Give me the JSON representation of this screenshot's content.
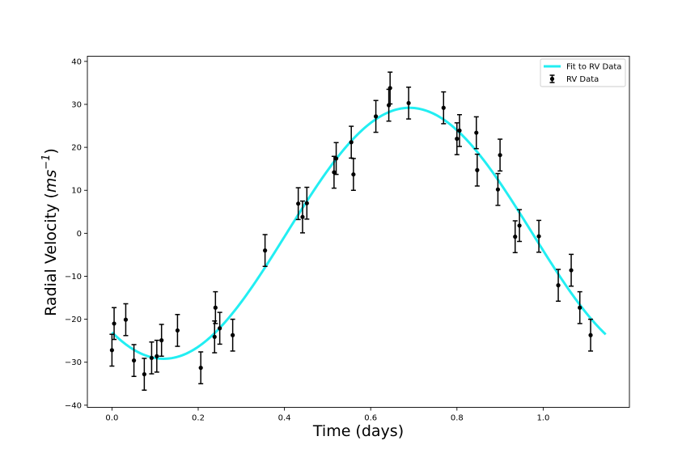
{
  "chart_data": {
    "type": "scatter",
    "xlabel": "Time (days)",
    "ylabel": {
      "prefix": "Radial Velocity (",
      "unit": "ms",
      "exponent": "−1",
      "suffix": ")"
    },
    "xlim": [
      -0.057,
      1.2
    ],
    "ylim": [
      -40.5,
      41.2
    ],
    "xticks": [
      0.0,
      0.2,
      0.4,
      0.6,
      0.8,
      1.0
    ],
    "xtick_labels": [
      "0.0",
      "0.2",
      "0.4",
      "0.6",
      "0.8",
      "1.0"
    ],
    "yticks": [
      -40,
      -30,
      -20,
      -10,
      0,
      10,
      20,
      30,
      40
    ],
    "ytick_labels": [
      "−40",
      "−30",
      "−20",
      "−10",
      "0",
      "10",
      "20",
      "30",
      "40"
    ],
    "grid": false,
    "legend_position": "top-right",
    "colors": {
      "fit": "#22eef2",
      "data": "#000000"
    },
    "legend": [
      {
        "label": "Fit to RV Data",
        "marker": "line"
      },
      {
        "label": "RV Data",
        "marker": "errorbar"
      }
    ],
    "fit": {
      "label": "Fit to RV Data",
      "model": "sinusoid",
      "offset": 0.0,
      "amplitude": 29.2,
      "period_days": 1.14,
      "peak_time_days": 0.69,
      "x_range": [
        0.0,
        1.145
      ]
    },
    "series": [
      {
        "name": "RV Data",
        "x": [
          0.0,
          0.005,
          0.032,
          0.051,
          0.075,
          0.092,
          0.104,
          0.115,
          0.152,
          0.206,
          0.238,
          0.24,
          0.25,
          0.28,
          0.355,
          0.432,
          0.442,
          0.452,
          0.515,
          0.52,
          0.555,
          0.56,
          0.612,
          0.642,
          0.645,
          0.688,
          0.769,
          0.8,
          0.806,
          0.845,
          0.847,
          0.895,
          0.9,
          0.935,
          0.945,
          0.99,
          1.035,
          1.065,
          1.085,
          1.11
        ],
        "y": [
          -27.2,
          -21.0,
          -20.1,
          -29.6,
          -32.8,
          -29.0,
          -28.6,
          -24.9,
          -22.6,
          -31.3,
          -24.1,
          -17.3,
          -22.1,
          -23.7,
          -4.0,
          6.9,
          3.8,
          7.0,
          14.2,
          17.4,
          21.2,
          13.7,
          27.2,
          29.8,
          33.8,
          30.3,
          29.2,
          22.0,
          23.9,
          23.4,
          14.7,
          10.2,
          18.2,
          -0.8,
          1.8,
          -0.7,
          -12.1,
          -8.6,
          -17.3,
          -23.7
        ],
        "error": 3.7
      }
    ]
  }
}
